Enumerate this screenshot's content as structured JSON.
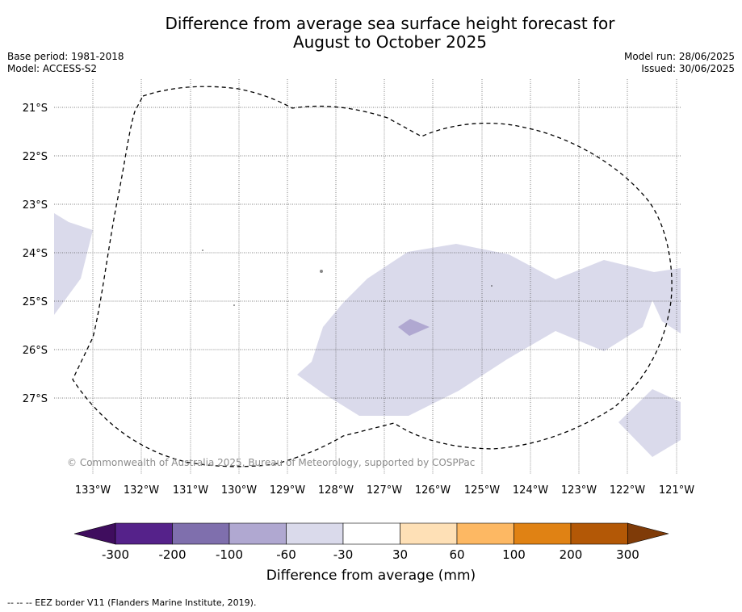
{
  "title_line1": "Difference from average sea surface height forecast for",
  "title_line2": "August to October 2025",
  "meta_left": {
    "base_period": "Base period: 1981-2018",
    "model": "Model: ACCESS-S2"
  },
  "meta_right": {
    "model_run": "Model run: 28/06/2025",
    "issued": "Issued: 30/06/2025"
  },
  "latitudes": [
    "21°S",
    "22°S",
    "23°S",
    "24°S",
    "25°S",
    "26°S",
    "27°S"
  ],
  "longitudes": [
    "133°W",
    "132°W",
    "131°W",
    "130°W",
    "129°W",
    "128°W",
    "127°W",
    "126°W",
    "125°W",
    "124°W",
    "123°W",
    "122°W",
    "121°W"
  ],
  "copyright": "© Commonwealth of Australia 2025, Bureau of Meteorology, supported by COSPPac",
  "colorbar": {
    "ticks": [
      "-300",
      "-200",
      "-100",
      "-60",
      "-30",
      "30",
      "60",
      "100",
      "200",
      "300"
    ],
    "colors": [
      "#3f0d5e",
      "#55228a",
      "#7f6fad",
      "#b0a8d1",
      "#dadaeb",
      "#ffffff",
      "#fee0b6",
      "#fdb863",
      "#e08214",
      "#b35806",
      "#7f3b08"
    ],
    "label": "Difference from average (mm)"
  },
  "footnote": "--  --  -- EEZ border V11 (Flanders Marine Institute, 2019)."
}
